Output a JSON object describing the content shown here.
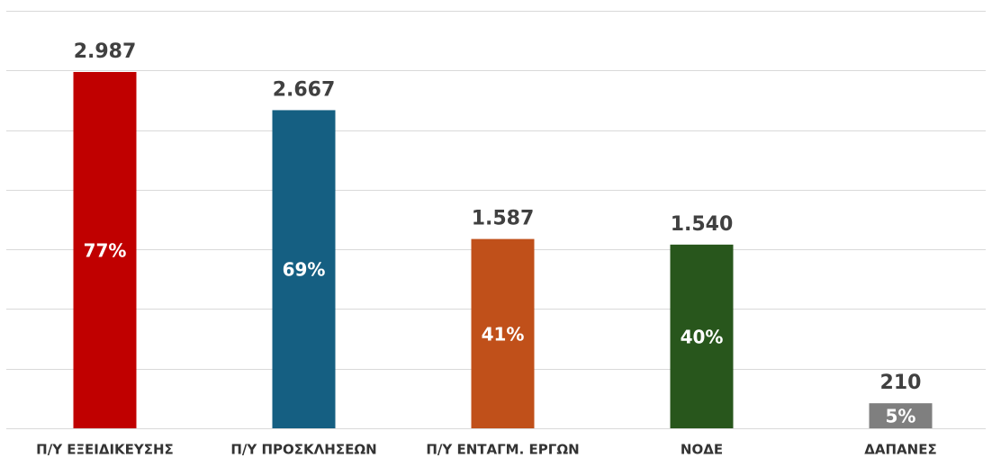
{
  "chart_data": {
    "type": "bar",
    "categories": [
      "Π/Υ ΕΞΕΙΔΙΚΕΥΣΗΣ",
      "Π/Υ ΠΡΟΣΚΛΗΣΕΩΝ",
      "Π/Υ ΕΝΤΑΓΜ. ΕΡΓΩΝ",
      "ΝΟΔΕ",
      "ΔΑΠΑΝΕΣ"
    ],
    "values": [
      2987,
      2667,
      1587,
      1540,
      210
    ],
    "value_labels": [
      "2.987",
      "2.667",
      "1.587",
      "1.540",
      "210"
    ],
    "shares": [
      77,
      69,
      41,
      40,
      5
    ],
    "share_labels": [
      "77%",
      "69%",
      "41%",
      "40%",
      "5%"
    ],
    "colors": [
      "#c00000",
      "#155f82",
      "#c0501a",
      "#28561c",
      "#7f7f7f"
    ],
    "ylim": [
      0,
      3500
    ],
    "yticks": [
      0,
      500,
      1000,
      1500,
      2000,
      2500,
      3000,
      3500
    ],
    "grid": true
  }
}
